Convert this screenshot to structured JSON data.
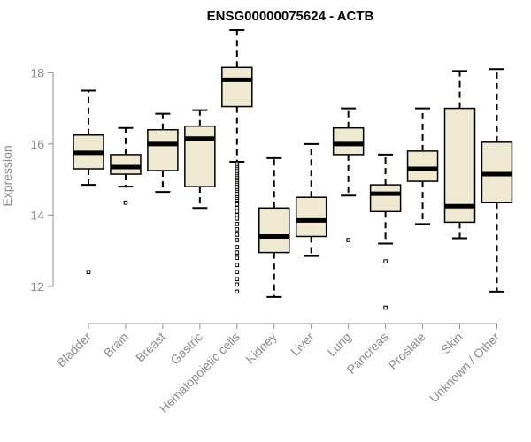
{
  "chart_data": {
    "type": "boxplot",
    "title": "ENSG00000075624 - ACTB",
    "xlabel": "",
    "ylabel": "Expression",
    "ylim": [
      11.3,
      19.3
    ],
    "yticks": [
      12,
      14,
      16,
      18
    ],
    "colors": {
      "box_fill": "#efe9d2",
      "stroke": "#000000",
      "axis": "#8c8c8c"
    },
    "categories": [
      "Bladder",
      "Brain",
      "Breast",
      "Gastric",
      "Hematopoietic cells",
      "Kidney",
      "Liver",
      "Lung",
      "Pancreas",
      "Prostate",
      "Skin",
      "Unknown / Other"
    ],
    "boxes": [
      {
        "category": "Bladder",
        "min": 14.85,
        "q1": 15.3,
        "median": 15.75,
        "q3": 16.25,
        "max": 17.5,
        "outliers": [
          12.4
        ]
      },
      {
        "category": "Brain",
        "min": 14.8,
        "q1": 15.15,
        "median": 15.35,
        "q3": 15.7,
        "max": 16.45,
        "outliers": [
          14.35
        ]
      },
      {
        "category": "Breast",
        "min": 14.65,
        "q1": 15.25,
        "median": 16.0,
        "q3": 16.4,
        "max": 16.85,
        "outliers": []
      },
      {
        "category": "Gastric",
        "min": 14.2,
        "q1": 14.8,
        "median": 16.15,
        "q3": 16.5,
        "max": 16.95,
        "outliers": []
      },
      {
        "category": "Hematopoietic cells",
        "min": 15.5,
        "q1": 17.05,
        "median": 17.8,
        "q3": 18.15,
        "max": 19.2,
        "outliers": [
          15.45,
          15.4,
          15.35,
          15.3,
          15.25,
          15.2,
          15.15,
          15.1,
          15.05,
          15.0,
          14.95,
          14.9,
          14.85,
          14.8,
          14.75,
          14.7,
          14.65,
          14.6,
          14.55,
          14.5,
          14.45,
          14.4,
          14.35,
          14.3,
          14.2,
          14.1,
          14.0,
          13.9,
          13.75,
          13.6,
          13.45,
          13.3,
          13.1,
          12.95,
          12.8,
          12.6,
          12.4,
          12.2,
          12.05,
          11.85
        ]
      },
      {
        "category": "Kidney",
        "min": 11.7,
        "q1": 12.95,
        "median": 13.4,
        "q3": 14.2,
        "max": 15.6,
        "outliers": []
      },
      {
        "category": "Liver",
        "min": 12.85,
        "q1": 13.4,
        "median": 13.85,
        "q3": 14.5,
        "max": 16.0,
        "outliers": []
      },
      {
        "category": "Lung",
        "min": 14.55,
        "q1": 15.7,
        "median": 16.0,
        "q3": 16.45,
        "max": 17.0,
        "outliers": [
          13.3
        ]
      },
      {
        "category": "Pancreas",
        "min": 13.2,
        "q1": 14.1,
        "median": 14.6,
        "q3": 14.85,
        "max": 15.7,
        "outliers": [
          12.7,
          11.4
        ]
      },
      {
        "category": "Prostate",
        "min": 13.75,
        "q1": 14.95,
        "median": 15.3,
        "q3": 15.8,
        "max": 17.0,
        "outliers": []
      },
      {
        "category": "Skin",
        "min": 13.35,
        "q1": 13.8,
        "median": 14.25,
        "q3": 17.0,
        "max": 18.05,
        "outliers": []
      },
      {
        "category": "Unknown / Other",
        "min": 11.85,
        "q1": 14.35,
        "median": 15.15,
        "q3": 16.05,
        "max": 18.1,
        "outliers": []
      }
    ]
  }
}
